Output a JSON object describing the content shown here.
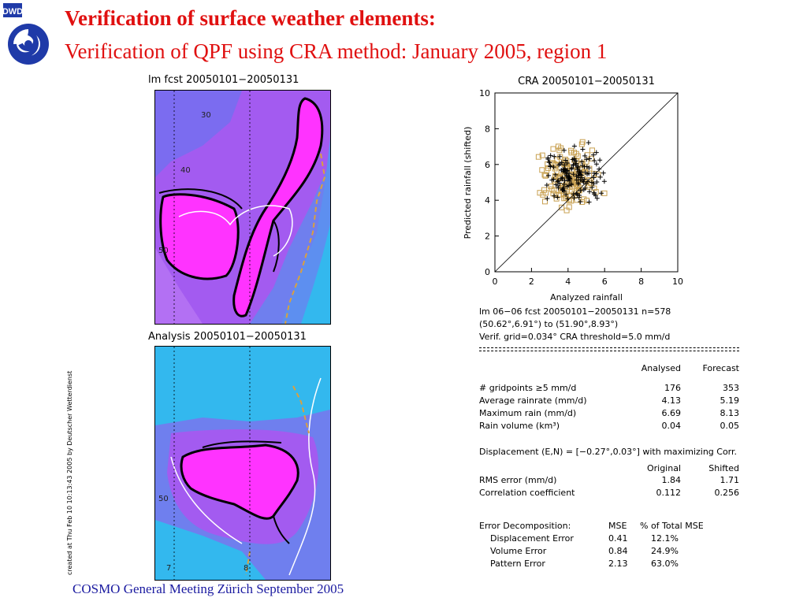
{
  "logo": {
    "text": "DWD",
    "icon": "dwd-spiral-logo-icon"
  },
  "title": {
    "line1": "Verification of surface weather elements:",
    "line2": "Verification of QPF using CRA method: January 2005, region 1"
  },
  "maps": {
    "forecast": {
      "title": "lm fcst 20050101−20050131",
      "contour_labels": [
        "30",
        "40",
        "50"
      ]
    },
    "analysis": {
      "title": "Analysis 20050101−20050131",
      "contour_labels": [
        "50",
        "7",
        "8"
      ]
    },
    "colors": {
      "level_low": "#33b8ee",
      "level_mid": "#6f7fee",
      "level_high": "#a35bf0",
      "level_top": "#ff33ff",
      "contour": "#000000",
      "boundary": "#ffffff",
      "river": "#d9a040"
    }
  },
  "credit": "created at Thu Feb 10 10:13:43 2005 by Deutscher Wetterdienst",
  "chart_data": {
    "type": "scatter",
    "title": "CRA  20050101−20050131",
    "xlabel": "Analyzed rainfall",
    "ylabel": "Predicted rainfall (shifted)",
    "xlim": [
      0,
      10
    ],
    "ylim": [
      0,
      10
    ],
    "xticks": [
      0,
      2,
      4,
      6,
      8,
      10
    ],
    "yticks": [
      0,
      2,
      4,
      6,
      8,
      10
    ],
    "grid": false,
    "reference_line": "y = x",
    "series": [
      {
        "marker": "square",
        "color": "#c8a050"
      },
      {
        "marker": "plus",
        "color": "#000000"
      }
    ]
  },
  "stats": {
    "header1": "lm 06−06 fcst 20050101−20050131   n=578",
    "header2": "(50.62°,6.91°) to (51.90°,8.93°)",
    "header3": "Verif. grid=0.034°   CRA threshold=5.0 mm/d",
    "col_analysed": "Analysed",
    "col_forecast": "Forecast",
    "rows1": [
      {
        "label": "# gridpoints ≥5 mm/d",
        "a": "176",
        "f": "353"
      },
      {
        "label": "Average rainrate (mm/d)",
        "a": "4.13",
        "f": "5.19"
      },
      {
        "label": "Maximum rain (mm/d)",
        "a": "6.69",
        "f": "8.13"
      },
      {
        "label": "Rain volume (km³)",
        "a": "0.04",
        "f": "0.05"
      }
    ],
    "displacement": "Displacement (E,N) = [−0.27°,0.03°] with maximizing Corr.",
    "col_original": "Original",
    "col_shifted": "Shifted",
    "rows2": [
      {
        "label": "RMS error (mm/d)",
        "o": "1.84",
        "s": "1.71"
      },
      {
        "label": "Correlation coefficient",
        "o": "0.112",
        "s": "0.256"
      }
    ],
    "decomp_label": "Error Decomposition:",
    "col_mse": "MSE",
    "col_pct": "% of Total MSE",
    "rows3": [
      {
        "label": "Displacement Error",
        "mse": "0.41",
        "pct": "12.1%"
      },
      {
        "label": "Volume Error",
        "mse": "0.84",
        "pct": "24.9%"
      },
      {
        "label": "Pattern Error",
        "mse": "2.13",
        "pct": "63.0%"
      }
    ]
  },
  "footer": "COSMO General Meeting  Zürich September 2005"
}
